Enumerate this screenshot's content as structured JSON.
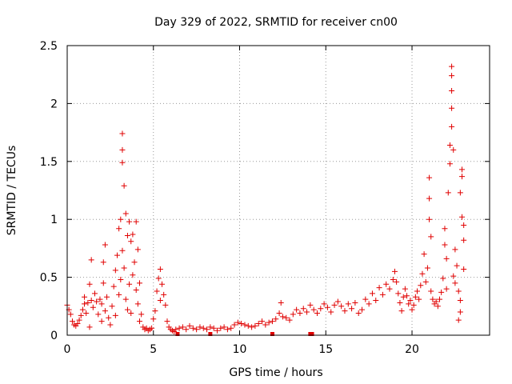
{
  "chart_data": {
    "type": "scatter",
    "title": "Day 329 of 2022, SRMTID for receiver cn00",
    "xlabel": "GPS time / hours",
    "ylabel": "SRMTID / TECUs",
    "xlim": [
      0,
      24.5
    ],
    "ylim": [
      0,
      2.5
    ],
    "xticks": [
      0,
      5,
      10,
      15,
      20
    ],
    "xtick_labels": [
      "0",
      "5",
      "10",
      "15",
      "20"
    ],
    "yticks": [
      0,
      0.5,
      1,
      1.5,
      2,
      2.5
    ],
    "ytick_labels": [
      "0",
      "0.5",
      "1",
      "1.5",
      "2",
      "2.5"
    ],
    "grid": true,
    "marker": "+",
    "series": [
      {
        "name": "SRMTID",
        "color": "#e00000",
        "points": [
          [
            0.0,
            0.26
          ],
          [
            0.1,
            0.22
          ],
          [
            0.2,
            0.18
          ],
          [
            0.3,
            0.12
          ],
          [
            0.4,
            0.09
          ],
          [
            0.5,
            0.08
          ],
          [
            0.6,
            0.1
          ],
          [
            0.7,
            0.13
          ],
          [
            0.8,
            0.17
          ],
          [
            0.9,
            0.22
          ],
          [
            1.0,
            0.27
          ],
          [
            1.0,
            0.33
          ],
          [
            1.1,
            0.19
          ],
          [
            1.2,
            0.28
          ],
          [
            1.3,
            0.44
          ],
          [
            1.3,
            0.07
          ],
          [
            1.4,
            0.65
          ],
          [
            1.4,
            0.3
          ],
          [
            1.5,
            0.24
          ],
          [
            1.6,
            0.36
          ],
          [
            1.7,
            0.29
          ],
          [
            1.8,
            0.18
          ],
          [
            1.9,
            0.31
          ],
          [
            2.0,
            0.27
          ],
          [
            2.0,
            0.12
          ],
          [
            2.1,
            0.63
          ],
          [
            2.1,
            0.45
          ],
          [
            2.2,
            0.78
          ],
          [
            2.2,
            0.21
          ],
          [
            2.3,
            0.33
          ],
          [
            2.4,
            0.15
          ],
          [
            2.5,
            0.09
          ],
          [
            2.6,
            0.25
          ],
          [
            2.7,
            0.42
          ],
          [
            2.8,
            0.56
          ],
          [
            2.8,
            0.17
          ],
          [
            2.9,
            0.69
          ],
          [
            3.0,
            0.92
          ],
          [
            3.0,
            0.35
          ],
          [
            3.1,
            1.0
          ],
          [
            3.1,
            0.48
          ],
          [
            3.2,
            1.74
          ],
          [
            3.2,
            1.6
          ],
          [
            3.2,
            1.49
          ],
          [
            3.2,
            0.73
          ],
          [
            3.3,
            1.29
          ],
          [
            3.3,
            0.58
          ],
          [
            3.4,
            1.05
          ],
          [
            3.4,
            0.31
          ],
          [
            3.5,
            0.86
          ],
          [
            3.5,
            0.22
          ],
          [
            3.6,
            0.98
          ],
          [
            3.6,
            0.44
          ],
          [
            3.7,
            0.81
          ],
          [
            3.7,
            0.19
          ],
          [
            3.8,
            0.87
          ],
          [
            3.8,
            0.52
          ],
          [
            3.9,
            0.63
          ],
          [
            4.0,
            0.98
          ],
          [
            4.0,
            0.39
          ],
          [
            4.1,
            0.74
          ],
          [
            4.1,
            0.27
          ],
          [
            4.2,
            0.45
          ],
          [
            4.2,
            0.12
          ],
          [
            4.3,
            0.18
          ],
          [
            4.4,
            0.07
          ],
          [
            4.5,
            0.05
          ],
          [
            4.6,
            0.06
          ],
          [
            4.7,
            0.04
          ],
          [
            4.8,
            0.05
          ],
          [
            4.9,
            0.06
          ],
          [
            5.0,
            0.14
          ],
          [
            5.1,
            0.21
          ],
          [
            5.2,
            0.38
          ],
          [
            5.3,
            0.49
          ],
          [
            5.4,
            0.57
          ],
          [
            5.4,
            0.3
          ],
          [
            5.5,
            0.44
          ],
          [
            5.6,
            0.35
          ],
          [
            5.7,
            0.26
          ],
          [
            5.8,
            0.12
          ],
          [
            5.9,
            0.07
          ],
          [
            6.0,
            0.05
          ],
          [
            6.1,
            0.04
          ],
          [
            6.2,
            0.03
          ],
          [
            6.3,
            0.05
          ],
          [
            6.5,
            0.06
          ],
          [
            6.7,
            0.07
          ],
          [
            6.9,
            0.05
          ],
          [
            7.1,
            0.08
          ],
          [
            7.3,
            0.06
          ],
          [
            7.5,
            0.05
          ],
          [
            7.7,
            0.07
          ],
          [
            7.9,
            0.06
          ],
          [
            8.1,
            0.05
          ],
          [
            8.3,
            0.07
          ],
          [
            8.5,
            0.06
          ],
          [
            8.7,
            0.04
          ],
          [
            8.9,
            0.06
          ],
          [
            9.1,
            0.07
          ],
          [
            9.3,
            0.05
          ],
          [
            9.5,
            0.06
          ],
          [
            9.7,
            0.09
          ],
          [
            9.9,
            0.11
          ],
          [
            10.1,
            0.1
          ],
          [
            10.3,
            0.09
          ],
          [
            10.5,
            0.08
          ],
          [
            10.7,
            0.07
          ],
          [
            10.9,
            0.08
          ],
          [
            11.1,
            0.1
          ],
          [
            11.3,
            0.12
          ],
          [
            11.5,
            0.09
          ],
          [
            11.7,
            0.11
          ],
          [
            11.9,
            0.12
          ],
          [
            12.1,
            0.14
          ],
          [
            12.3,
            0.19
          ],
          [
            12.4,
            0.28
          ],
          [
            12.5,
            0.16
          ],
          [
            12.7,
            0.15
          ],
          [
            12.9,
            0.13
          ],
          [
            13.1,
            0.18
          ],
          [
            13.3,
            0.22
          ],
          [
            13.5,
            0.19
          ],
          [
            13.7,
            0.23
          ],
          [
            13.9,
            0.2
          ],
          [
            14.1,
            0.26
          ],
          [
            14.3,
            0.22
          ],
          [
            14.5,
            0.19
          ],
          [
            14.7,
            0.23
          ],
          [
            14.9,
            0.27
          ],
          [
            15.1,
            0.24
          ],
          [
            15.3,
            0.2
          ],
          [
            15.5,
            0.26
          ],
          [
            15.7,
            0.29
          ],
          [
            15.9,
            0.25
          ],
          [
            16.1,
            0.21
          ],
          [
            16.3,
            0.27
          ],
          [
            16.5,
            0.23
          ],
          [
            16.7,
            0.28
          ],
          [
            16.9,
            0.19
          ],
          [
            17.1,
            0.22
          ],
          [
            17.3,
            0.31
          ],
          [
            17.5,
            0.27
          ],
          [
            17.7,
            0.36
          ],
          [
            17.9,
            0.3
          ],
          [
            18.1,
            0.41
          ],
          [
            18.3,
            0.35
          ],
          [
            18.5,
            0.44
          ],
          [
            18.7,
            0.4
          ],
          [
            18.9,
            0.48
          ],
          [
            19.0,
            0.55
          ],
          [
            19.1,
            0.46
          ],
          [
            19.2,
            0.36
          ],
          [
            19.3,
            0.28
          ],
          [
            19.4,
            0.21
          ],
          [
            19.5,
            0.33
          ],
          [
            19.6,
            0.4
          ],
          [
            19.7,
            0.34
          ],
          [
            19.8,
            0.27
          ],
          [
            19.9,
            0.3
          ],
          [
            20.0,
            0.22
          ],
          [
            20.1,
            0.26
          ],
          [
            20.2,
            0.33
          ],
          [
            20.3,
            0.38
          ],
          [
            20.4,
            0.31
          ],
          [
            20.5,
            0.43
          ],
          [
            20.6,
            0.53
          ],
          [
            20.7,
            0.7
          ],
          [
            20.8,
            0.46
          ],
          [
            20.9,
            0.58
          ],
          [
            21.0,
            1.0
          ],
          [
            21.0,
            1.18
          ],
          [
            21.0,
            1.36
          ],
          [
            21.1,
            0.85
          ],
          [
            21.1,
            0.38
          ],
          [
            21.2,
            0.31
          ],
          [
            21.3,
            0.27
          ],
          [
            21.4,
            0.29
          ],
          [
            21.5,
            0.25
          ],
          [
            21.6,
            0.31
          ],
          [
            21.7,
            0.37
          ],
          [
            21.8,
            0.49
          ],
          [
            21.9,
            0.78
          ],
          [
            21.9,
            0.92
          ],
          [
            22.0,
            0.66
          ],
          [
            22.0,
            0.4
          ],
          [
            22.1,
            1.23
          ],
          [
            22.2,
            1.48
          ],
          [
            22.2,
            1.64
          ],
          [
            22.3,
            2.32
          ],
          [
            22.3,
            2.24
          ],
          [
            22.3,
            2.11
          ],
          [
            22.3,
            1.96
          ],
          [
            22.3,
            1.8
          ],
          [
            22.4,
            1.6
          ],
          [
            22.4,
            0.51
          ],
          [
            22.5,
            0.74
          ],
          [
            22.5,
            0.45
          ],
          [
            22.6,
            0.6
          ],
          [
            22.7,
            0.38
          ],
          [
            22.7,
            0.13
          ],
          [
            22.8,
            1.23
          ],
          [
            22.8,
            0.3
          ],
          [
            22.9,
            1.37
          ],
          [
            22.9,
            1.02
          ],
          [
            23.0,
            0.82
          ],
          [
            23.0,
            0.57
          ],
          [
            22.9,
            1.43
          ],
          [
            23.0,
            0.95
          ],
          [
            22.8,
            0.2
          ]
        ]
      }
    ],
    "extra_points": [
      [
        6.4,
        0.0
      ],
      [
        8.3,
        0.0
      ],
      [
        11.9,
        0.0
      ],
      [
        14.1,
        0.0
      ],
      [
        14.2,
        0.0
      ]
    ]
  }
}
